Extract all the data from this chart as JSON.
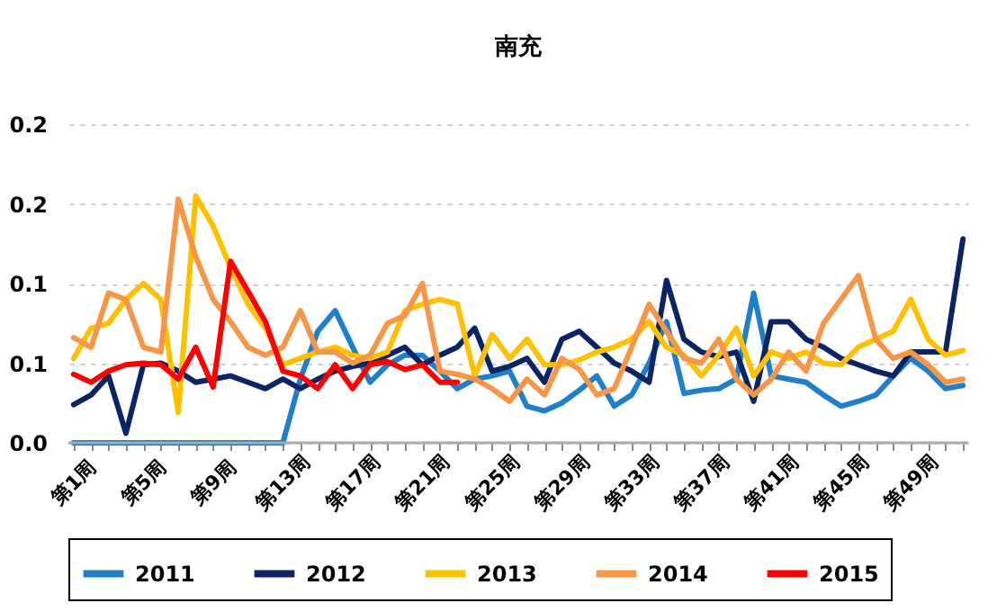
{
  "chart_data": {
    "type": "line",
    "title": "南充",
    "categories": [
      "第1周",
      null,
      null,
      null,
      "第5周",
      null,
      null,
      null,
      "第9周",
      null,
      null,
      null,
      "第13周",
      null,
      null,
      null,
      "第17周",
      null,
      null,
      null,
      "第21周",
      null,
      null,
      null,
      "第25周",
      null,
      null,
      null,
      "第29周",
      null,
      null,
      null,
      "第33周",
      null,
      null,
      null,
      "第37周",
      null,
      null,
      null,
      "第41周",
      null,
      null,
      null,
      "第45周",
      null,
      null,
      null,
      "第49周",
      null,
      null,
      null
    ],
    "ylim": [
      0,
      0.2
    ],
    "yticks": [
      {
        "value": 0,
        "label": "0.0"
      },
      {
        "value": 0.05,
        "label": "0.1"
      },
      {
        "value": 0.1,
        "label": "0.1"
      },
      {
        "value": 0.15,
        "label": "0.2"
      },
      {
        "value": 0.2,
        "label": "0.2"
      }
    ],
    "grid": "y",
    "legend": "bottom",
    "series": [
      {
        "name": "2011",
        "color": "#1f7fc8",
        "values": [
          0,
          0,
          0,
          0,
          0,
          0,
          0,
          0,
          0,
          0,
          0,
          0,
          0,
          0.04,
          0.07,
          0.083,
          0.06,
          0.038,
          0.049,
          0.055,
          0.055,
          0.045,
          0.034,
          0.04,
          0.042,
          0.045,
          0.023,
          0.02,
          0.025,
          0.033,
          0.042,
          0.023,
          0.03,
          0.05,
          0.076,
          0.031,
          0.033,
          0.034,
          0.04,
          0.094,
          0.042,
          0.04,
          0.038,
          0.03,
          0.023,
          0.026,
          0.03,
          0.042,
          0.053,
          0.045,
          0.034,
          0.036
        ]
      },
      {
        "name": "2012",
        "color": "#0b2466",
        "values": [
          0.024,
          0.03,
          0.042,
          0.006,
          0.049,
          0.05,
          0.045,
          0.038,
          0.04,
          0.042,
          0.038,
          0.034,
          0.04,
          0.034,
          0.04,
          0.045,
          0.048,
          0.05,
          0.055,
          0.06,
          0.049,
          0.055,
          0.06,
          0.072,
          0.045,
          0.048,
          0.053,
          0.038,
          0.065,
          0.07,
          0.06,
          0.05,
          0.045,
          0.038,
          0.102,
          0.065,
          0.057,
          0.054,
          0.057,
          0.026,
          0.076,
          0.076,
          0.065,
          0.06,
          0.053,
          0.049,
          0.045,
          0.042,
          0.057,
          0.057,
          0.057,
          0.128
        ]
      },
      {
        "name": "2013",
        "color": "#ffc000",
        "values": [
          0.053,
          0.072,
          0.075,
          0.09,
          0.1,
          0.09,
          0.019,
          0.155,
          0.136,
          0.11,
          0.087,
          0.072,
          0.049,
          0.053,
          0.057,
          0.06,
          0.055,
          0.053,
          0.057,
          0.083,
          0.087,
          0.09,
          0.087,
          0.042,
          0.068,
          0.053,
          0.065,
          0.049,
          0.049,
          0.052,
          0.057,
          0.06,
          0.065,
          0.076,
          0.06,
          0.055,
          0.042,
          0.055,
          0.072,
          0.042,
          0.057,
          0.053,
          0.057,
          0.05,
          0.049,
          0.06,
          0.065,
          0.07,
          0.09,
          0.065,
          0.055,
          0.058
        ]
      },
      {
        "name": "2014",
        "color": "#f79646",
        "values": [
          0.066,
          0.06,
          0.094,
          0.09,
          0.06,
          0.057,
          0.153,
          0.117,
          0.09,
          0.076,
          0.06,
          0.055,
          0.06,
          0.083,
          0.057,
          0.057,
          0.05,
          0.055,
          0.075,
          0.08,
          0.1,
          0.045,
          0.043,
          0.04,
          0.034,
          0.026,
          0.04,
          0.03,
          0.053,
          0.046,
          0.03,
          0.034,
          0.06,
          0.087,
          0.07,
          0.053,
          0.05,
          0.065,
          0.04,
          0.03,
          0.04,
          0.057,
          0.045,
          0.075,
          0.09,
          0.105,
          0.065,
          0.053,
          0.057,
          0.049,
          0.038,
          0.04
        ]
      },
      {
        "name": "2015",
        "color": "#ff0000",
        "values": [
          0.043,
          0.038,
          0.045,
          0.049,
          0.05,
          0.049,
          0.04,
          0.06,
          0.035,
          0.114,
          0.095,
          0.076,
          0.045,
          0.042,
          0.034,
          0.049,
          0.034,
          0.049,
          0.051,
          0.046,
          0.049,
          0.038,
          0.038,
          null,
          null,
          null,
          null,
          null,
          null,
          null,
          null,
          null,
          null,
          null,
          null,
          null,
          null,
          null,
          null,
          null,
          null,
          null,
          null,
          null,
          null,
          null,
          null,
          null,
          null,
          null,
          null,
          null
        ]
      }
    ]
  }
}
